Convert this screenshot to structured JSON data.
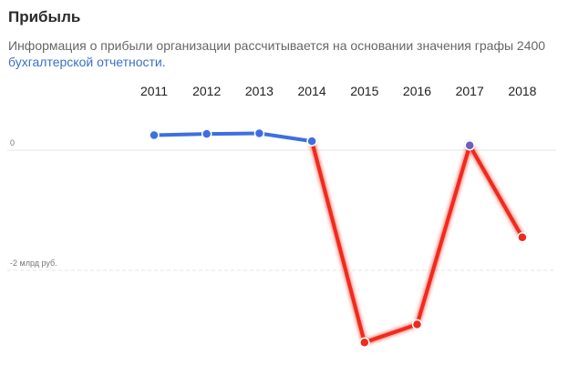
{
  "title": "Прибыль",
  "description": {
    "text": "Информация о прибыли организации рассчитывается на основании значения графы 2400 ",
    "link_text": "бухгалтерской отчетности",
    "suffix": "."
  },
  "colors": {
    "positive": "#3d6fe0",
    "negative": "#f02a1d",
    "axis_grid": "#e6e6e6"
  },
  "chart_data": {
    "type": "line",
    "categories": [
      "2011",
      "2012",
      "2013",
      "2014",
      "2015",
      "2016",
      "2017",
      "2018"
    ],
    "values": [
      0.25,
      0.27,
      0.28,
      0.15,
      -3.2,
      -2.9,
      0.08,
      -1.45
    ],
    "unit": "млрд руб.",
    "y_ticks": [
      {
        "value": 0,
        "label": "0"
      },
      {
        "value": -2,
        "label": "-2 млрд руб."
      }
    ],
    "ylim": [
      -3.5,
      0.5
    ],
    "grid": true
  }
}
